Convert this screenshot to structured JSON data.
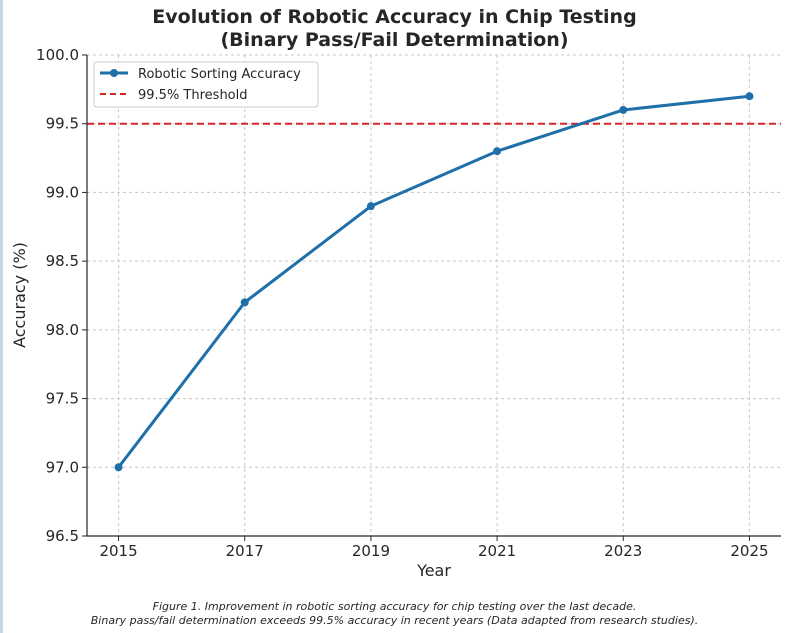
{
  "chart_data": {
    "type": "line",
    "title_line1": "Evolution of Robotic Accuracy in Chip Testing",
    "title_line2": "(Binary Pass/Fail Determination)",
    "xlabel": "Year",
    "ylabel": "Accuracy (%)",
    "x": [
      2015,
      2017,
      2019,
      2021,
      2023,
      2025
    ],
    "xticks": [
      "2015",
      "2017",
      "2019",
      "2021",
      "2023",
      "2025"
    ],
    "yticks": [
      "96.5",
      "97.0",
      "97.5",
      "98.0",
      "98.5",
      "99.0",
      "99.5",
      "100.0"
    ],
    "ylim": [
      96.5,
      100.0
    ],
    "xlim": [
      2014.5,
      2025.5
    ],
    "grid": true,
    "legend_position": "top-left",
    "series": [
      {
        "name": "Robotic Sorting Accuracy",
        "values": [
          97.0,
          98.2,
          98.9,
          99.3,
          99.6,
          99.7
        ],
        "color": "#1f6fa8",
        "style": "solid-with-markers"
      }
    ],
    "reference_lines": [
      {
        "name": "99.5% Threshold",
        "y": 99.5,
        "color": "#d62728",
        "style": "dashed"
      }
    ]
  },
  "caption": {
    "line1": "Figure 1. Improvement in robotic sorting accuracy for chip testing over the last decade.",
    "line2": "Binary pass/fail determination exceeds 99.5% accuracy in recent years (Data adapted from research studies)."
  }
}
